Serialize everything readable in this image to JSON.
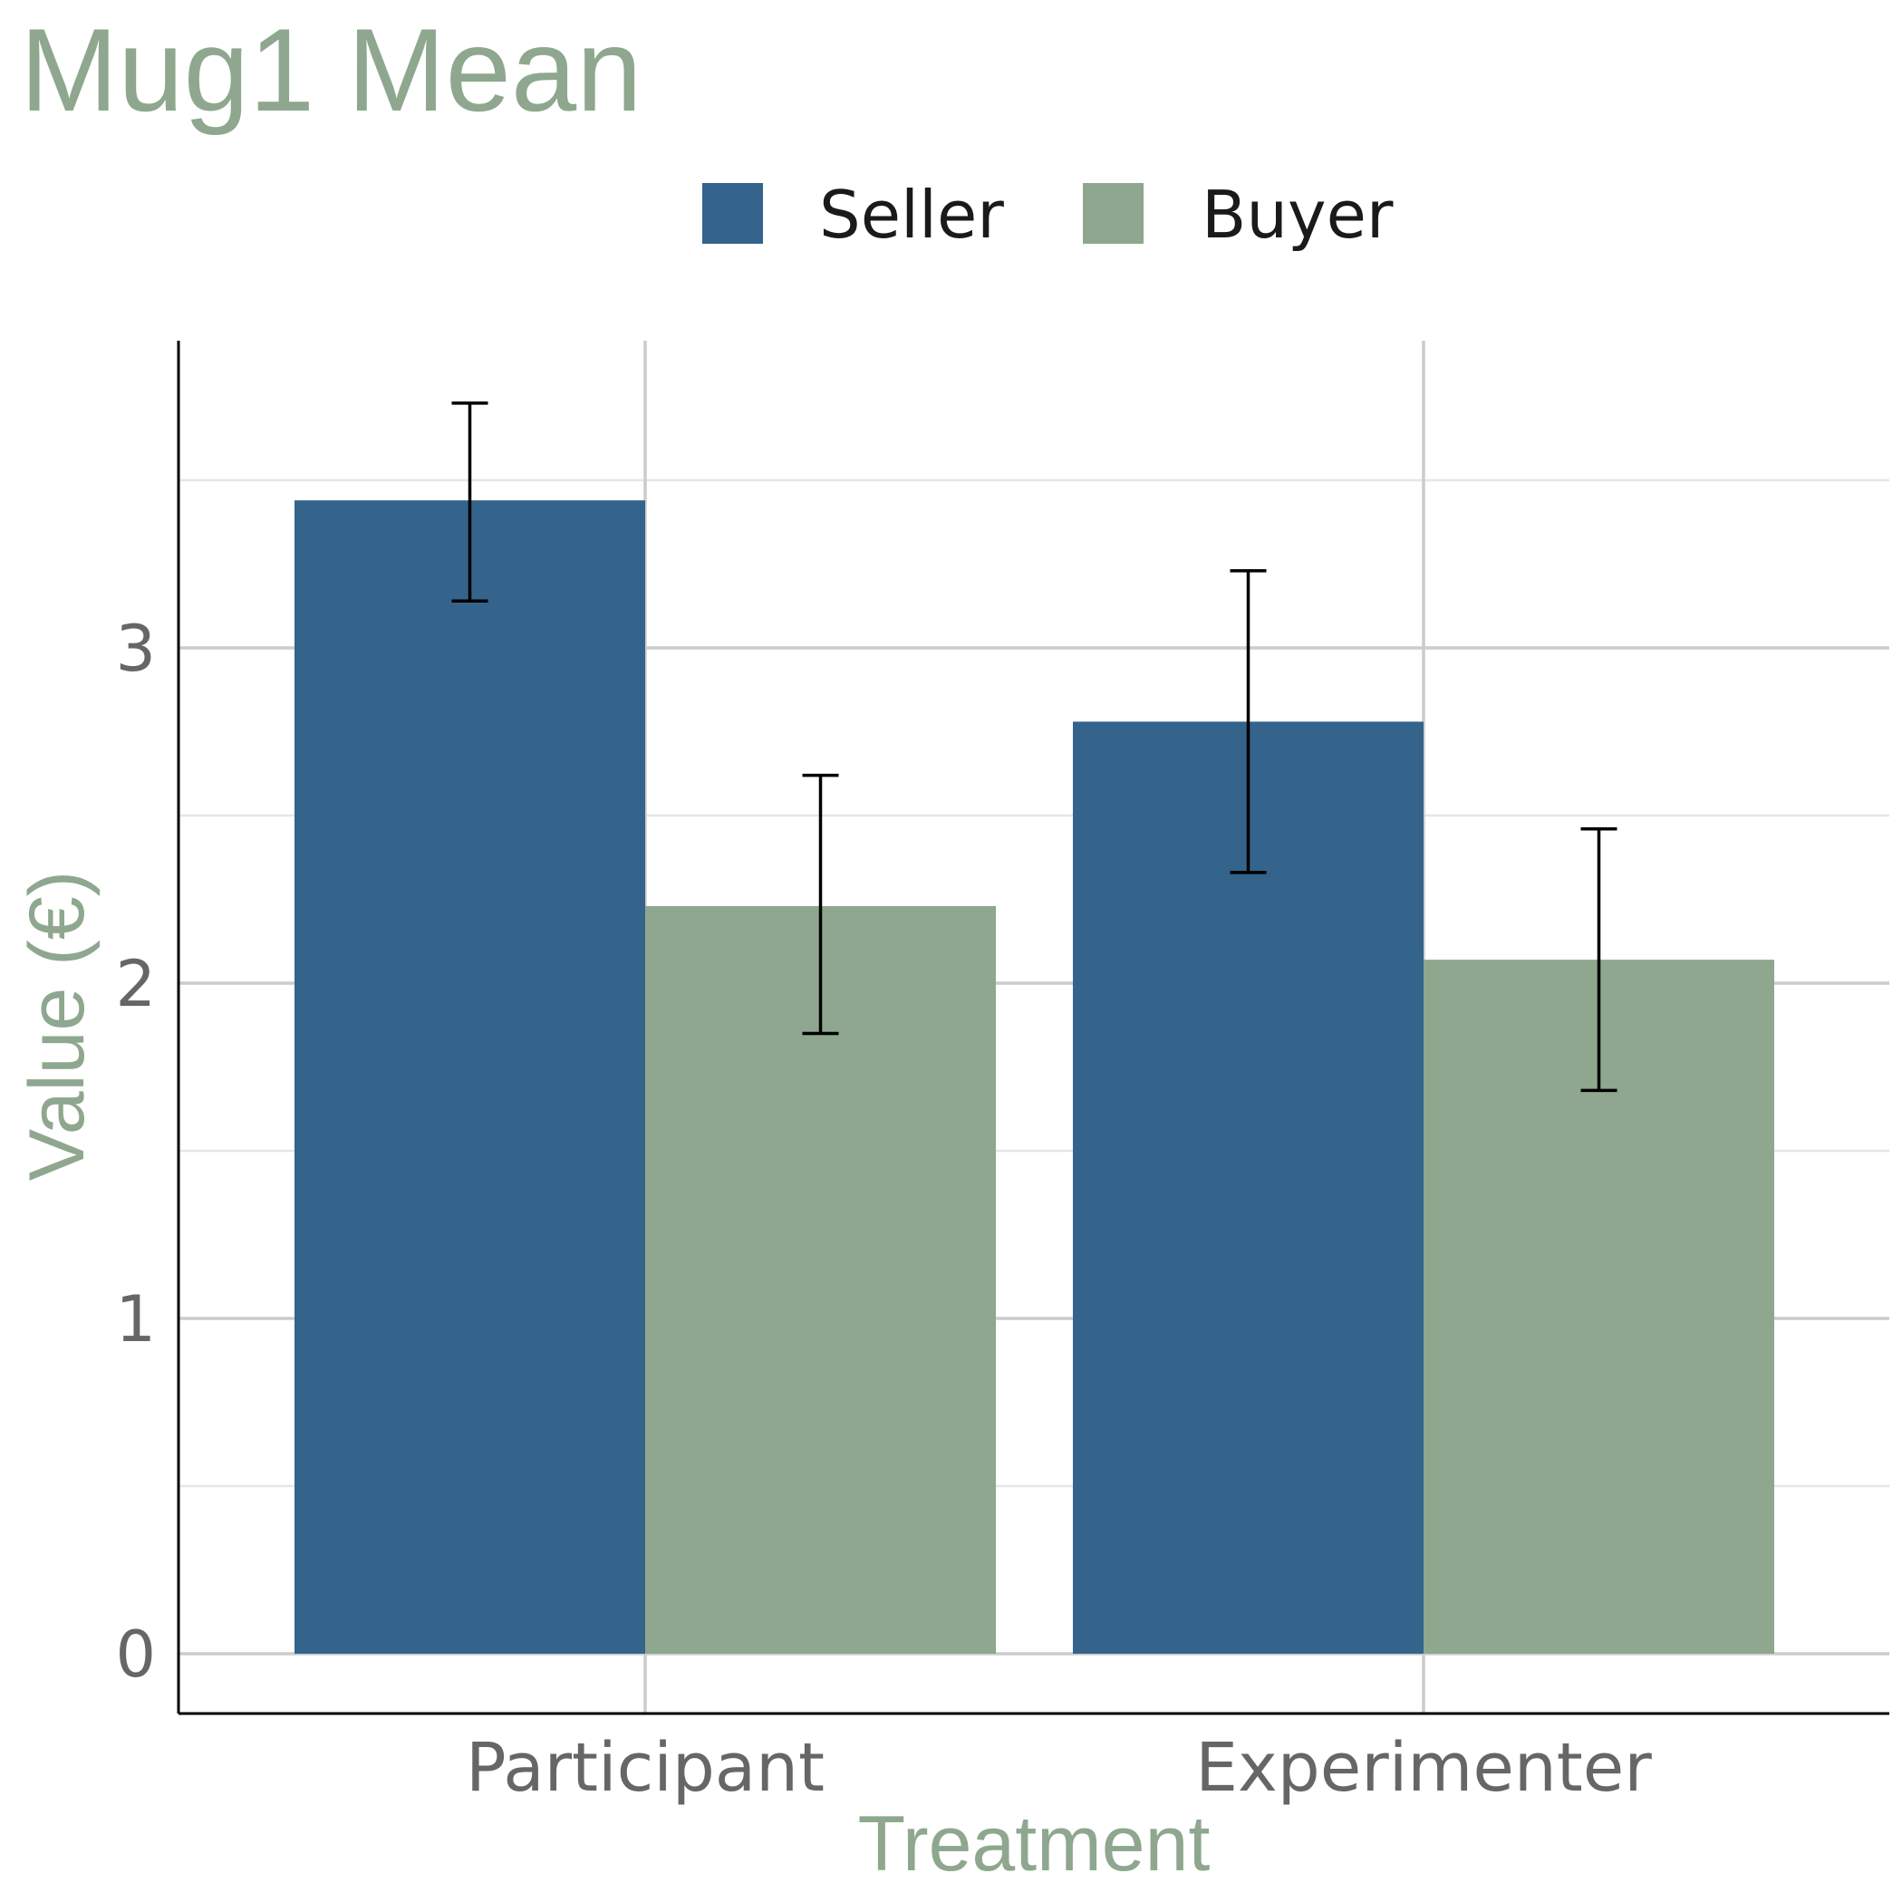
{
  "colors": {
    "seller": "#34638c",
    "buyer": "#8ea78e",
    "title": "#8ea78e",
    "tick_text": "#666666",
    "legend_text": "#1a1a1a",
    "grid_major": "#cccccc",
    "grid_minor": "#e6e6e6",
    "axis": "#000000",
    "error_bar": "#000000"
  },
  "chart_data": {
    "type": "bar",
    "title": "Mug1 Mean",
    "xlabel": "Treatment",
    "ylabel": "Value (€)",
    "categories": [
      "Participant",
      "Experimenter"
    ],
    "series": [
      {
        "name": "Seller",
        "values": [
          3.44,
          2.78
        ],
        "error_low": [
          3.14,
          2.33
        ],
        "error_high": [
          3.73,
          3.23
        ]
      },
      {
        "name": "Buyer",
        "values": [
          2.23,
          2.07
        ],
        "error_low": [
          1.85,
          1.68
        ],
        "error_high": [
          2.62,
          2.46
        ]
      }
    ],
    "yticks": [
      "0",
      "1",
      "2",
      "3"
    ],
    "ylim": [
      -0.18,
      3.9
    ],
    "grid": true,
    "legend_position": "top"
  }
}
